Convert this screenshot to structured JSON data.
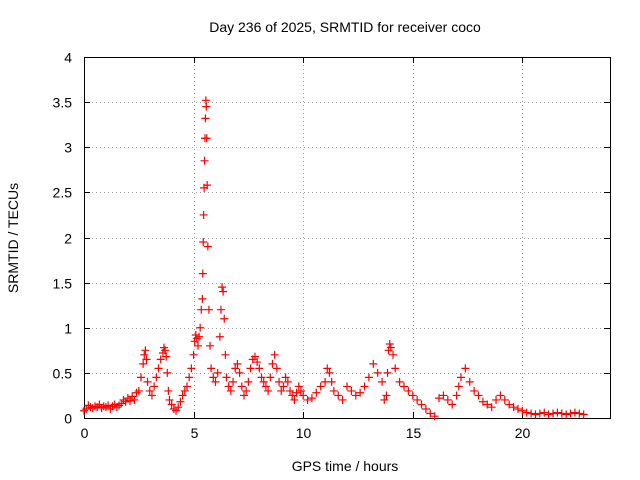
{
  "chart_data": {
    "type": "scatter",
    "title": "Day 236 of 2025, SRMTID for receiver coco",
    "xlabel": "GPS time / hours",
    "ylabel": "SRMTID / TECUs",
    "xlim": [
      0,
      24
    ],
    "ylim": [
      0,
      4
    ],
    "xticks": [
      0,
      5,
      10,
      15,
      20
    ],
    "xtick_labels": [
      "0",
      "5",
      "10",
      "15",
      "20"
    ],
    "yticks": [
      0,
      0.5,
      1,
      1.5,
      2,
      2.5,
      3,
      3.5,
      4
    ],
    "ytick_labels": [
      "0",
      "0.5",
      "1",
      "1.5",
      "2",
      "2.5",
      "3",
      "3.5",
      "4"
    ],
    "grid": true,
    "marker": "plus",
    "color": "#ff0000",
    "series": [
      {
        "name": "SRMTID",
        "x": [
          0.0,
          0.1,
          0.2,
          0.3,
          0.4,
          0.5,
          0.6,
          0.7,
          0.8,
          0.9,
          1.0,
          1.1,
          1.2,
          1.3,
          1.4,
          1.5,
          1.6,
          1.7,
          1.8,
          1.9,
          2.0,
          2.1,
          2.2,
          2.3,
          2.4,
          2.5,
          2.6,
          2.7,
          2.75,
          2.8,
          2.85,
          2.9,
          3.0,
          3.1,
          3.2,
          3.3,
          3.4,
          3.5,
          3.6,
          3.65,
          3.7,
          3.75,
          3.8,
          3.85,
          3.9,
          4.0,
          4.1,
          4.2,
          4.3,
          4.4,
          4.5,
          4.6,
          4.7,
          4.8,
          4.9,
          5.0,
          5.05,
          5.1,
          5.15,
          5.2,
          5.25,
          5.3,
          5.35,
          5.4,
          5.42,
          5.44,
          5.46,
          5.48,
          5.5,
          5.52,
          5.54,
          5.56,
          5.58,
          5.6,
          5.62,
          5.65,
          5.7,
          5.75,
          5.8,
          5.9,
          6.0,
          6.1,
          6.2,
          6.25,
          6.3,
          6.35,
          6.4,
          6.45,
          6.5,
          6.6,
          6.7,
          6.8,
          6.9,
          7.0,
          7.1,
          7.2,
          7.3,
          7.4,
          7.5,
          7.6,
          7.7,
          7.8,
          7.9,
          8.0,
          8.1,
          8.2,
          8.3,
          8.4,
          8.5,
          8.6,
          8.7,
          8.8,
          8.9,
          9.0,
          9.1,
          9.2,
          9.3,
          9.4,
          9.5,
          9.6,
          9.7,
          9.8,
          9.9,
          10.0,
          10.2,
          10.4,
          10.6,
          10.8,
          11.0,
          11.1,
          11.2,
          11.3,
          11.4,
          11.6,
          11.8,
          12.0,
          12.2,
          12.4,
          12.6,
          12.8,
          13.0,
          13.2,
          13.4,
          13.6,
          13.7,
          13.8,
          13.85,
          13.9,
          13.95,
          14.0,
          14.1,
          14.2,
          14.4,
          14.6,
          14.8,
          15.0,
          15.2,
          15.4,
          15.6,
          15.8,
          16.0,
          16.2,
          16.4,
          16.6,
          16.8,
          17.0,
          17.1,
          17.2,
          17.4,
          17.6,
          17.8,
          18.0,
          18.2,
          18.4,
          18.6,
          18.8,
          19.0,
          19.2,
          19.4,
          19.6,
          19.8,
          20.0,
          20.2,
          20.4,
          20.6,
          20.8,
          21.0,
          21.2,
          21.4,
          21.6,
          21.8,
          22.0,
          22.2,
          22.4,
          22.6,
          22.8
        ],
        "y": [
          0.08,
          0.1,
          0.14,
          0.12,
          0.11,
          0.13,
          0.12,
          0.15,
          0.11,
          0.13,
          0.12,
          0.14,
          0.1,
          0.13,
          0.15,
          0.12,
          0.14,
          0.16,
          0.2,
          0.18,
          0.22,
          0.19,
          0.24,
          0.2,
          0.28,
          0.3,
          0.45,
          0.6,
          0.7,
          0.75,
          0.65,
          0.4,
          0.3,
          0.25,
          0.35,
          0.45,
          0.55,
          0.65,
          0.72,
          0.78,
          0.75,
          0.68,
          0.5,
          0.3,
          0.2,
          0.15,
          0.1,
          0.08,
          0.12,
          0.18,
          0.25,
          0.3,
          0.35,
          0.45,
          0.55,
          0.7,
          0.85,
          0.92,
          0.88,
          0.8,
          0.9,
          1.0,
          1.2,
          1.32,
          1.6,
          1.95,
          2.25,
          2.55,
          2.85,
          3.1,
          3.32,
          3.52,
          3.45,
          3.1,
          2.58,
          1.9,
          1.2,
          0.8,
          0.55,
          0.45,
          0.4,
          0.5,
          0.9,
          1.2,
          1.45,
          1.4,
          1.1,
          0.7,
          0.45,
          0.35,
          0.3,
          0.4,
          0.55,
          0.6,
          0.5,
          0.35,
          0.25,
          0.3,
          0.4,
          0.55,
          0.65,
          0.68,
          0.62,
          0.55,
          0.45,
          0.4,
          0.35,
          0.3,
          0.45,
          0.6,
          0.7,
          0.55,
          0.4,
          0.3,
          0.35,
          0.45,
          0.4,
          0.3,
          0.25,
          0.2,
          0.28,
          0.35,
          0.3,
          0.25,
          0.2,
          0.22,
          0.28,
          0.35,
          0.4,
          0.55,
          0.5,
          0.4,
          0.3,
          0.25,
          0.2,
          0.35,
          0.3,
          0.25,
          0.28,
          0.35,
          0.45,
          0.6,
          0.5,
          0.4,
          0.2,
          0.25,
          0.5,
          0.75,
          0.82,
          0.78,
          0.7,
          0.55,
          0.4,
          0.35,
          0.3,
          0.25,
          0.2,
          0.15,
          0.1,
          0.05,
          0.02,
          0.22,
          0.25,
          0.2,
          0.15,
          0.25,
          0.35,
          0.45,
          0.55,
          0.4,
          0.3,
          0.25,
          0.18,
          0.15,
          0.12,
          0.2,
          0.25,
          0.2,
          0.15,
          0.12,
          0.1,
          0.08,
          0.06,
          0.05,
          0.04,
          0.05,
          0.06,
          0.04,
          0.05,
          0.06,
          0.05,
          0.04,
          0.05,
          0.06,
          0.05,
          0.04
        ]
      }
    ]
  }
}
